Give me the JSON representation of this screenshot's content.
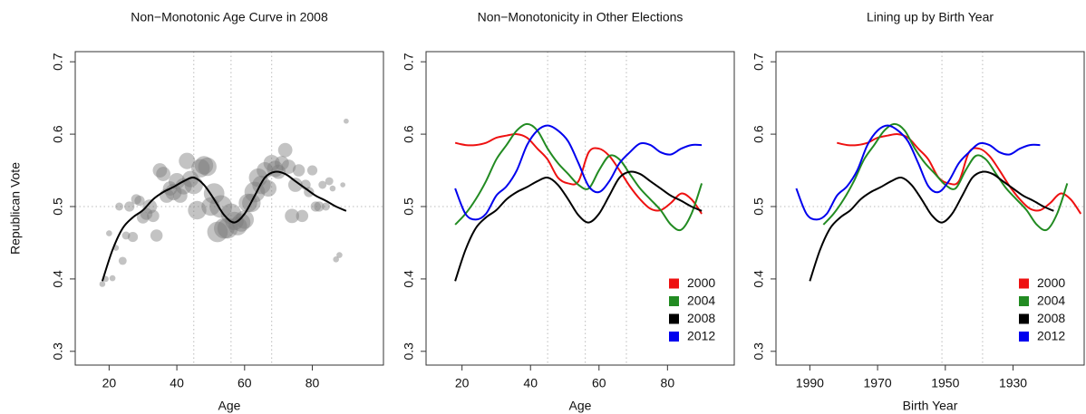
{
  "chart_data": [
    {
      "type": "scatter",
      "title": "Non−Monotonic Age Curve in 2008",
      "xlabel": "Age",
      "ylabel": "Republican Vote",
      "xlim": [
        10,
        101
      ],
      "ylim": [
        0.281,
        0.714
      ],
      "xticks": [
        20,
        40,
        60,
        80
      ],
      "yticks": [
        0.3,
        0.4,
        0.5,
        0.6,
        0.7
      ],
      "vlines": [
        45,
        56,
        68
      ],
      "hlines": [
        0.5
      ],
      "points": {
        "color": "#7a7a7a",
        "x": [
          18,
          19,
          20,
          21,
          22,
          23,
          24,
          25,
          26,
          27,
          28,
          29,
          30,
          31,
          32,
          33,
          34,
          35,
          36,
          37,
          38,
          39,
          40,
          41,
          42,
          43,
          44,
          45,
          46,
          47,
          48,
          49,
          50,
          51,
          52,
          53,
          54,
          55,
          56,
          57,
          58,
          59,
          60,
          61,
          62,
          63,
          64,
          65,
          66,
          67,
          68,
          69,
          70,
          71,
          72,
          73,
          74,
          75,
          76,
          77,
          78,
          79,
          80,
          81,
          82,
          83,
          84,
          85,
          86,
          87,
          88,
          89,
          90
        ],
        "values": [
          0.393,
          0.4,
          0.463,
          0.401,
          0.443,
          0.5,
          0.425,
          0.46,
          0.5,
          0.458,
          0.51,
          0.508,
          0.485,
          0.49,
          0.5,
          0.487,
          0.46,
          0.55,
          0.545,
          0.515,
          0.525,
          0.52,
          0.535,
          0.515,
          0.528,
          0.563,
          0.538,
          0.53,
          0.495,
          0.553,
          0.557,
          0.555,
          0.5,
          0.518,
          0.465,
          0.5,
          0.47,
          0.47,
          0.49,
          0.48,
          0.473,
          0.478,
          0.482,
          0.505,
          0.505,
          0.52,
          0.54,
          0.53,
          0.55,
          0.525,
          0.56,
          0.552,
          0.548,
          0.56,
          0.578,
          0.555,
          0.487,
          0.53,
          0.55,
          0.487,
          0.53,
          0.52,
          0.55,
          0.5,
          0.5,
          0.53,
          0.5,
          0.535,
          0.525,
          0.427,
          0.433,
          0.53,
          0.618
        ],
        "sizes": [
          1,
          1,
          1,
          1,
          1,
          1.5,
          1.5,
          1.5,
          2,
          2,
          2,
          2,
          2.5,
          2.5,
          3,
          2.5,
          2.5,
          3,
          3,
          3,
          3,
          3.5,
          3.5,
          3,
          3.5,
          3.5,
          3.5,
          4,
          4,
          4,
          4,
          4,
          4,
          4.5,
          4.5,
          5,
          4.5,
          4.5,
          4.5,
          4,
          4,
          4,
          4,
          4,
          4,
          4.5,
          4,
          4,
          3.5,
          3.5,
          3.5,
          3.5,
          3,
          3,
          3,
          3,
          3,
          3,
          2.5,
          2.5,
          2,
          2,
          2,
          2,
          2,
          1.5,
          1.5,
          1.5,
          1,
          1,
          1,
          0.8,
          0.8
        ]
      },
      "x": [
        18,
        21,
        24,
        27,
        30,
        33,
        36,
        39,
        42,
        45,
        48,
        51,
        54,
        57,
        60,
        63,
        66,
        69,
        72,
        75,
        78,
        81,
        84,
        87,
        90
      ],
      "series": [
        {
          "color": "#000000",
          "values": [
            0.397,
            0.44,
            0.47,
            0.485,
            0.495,
            0.51,
            0.52,
            0.527,
            0.535,
            0.54,
            0.53,
            0.51,
            0.488,
            0.478,
            0.49,
            0.515,
            0.54,
            0.548,
            0.545,
            0.535,
            0.525,
            0.515,
            0.508,
            0.5,
            0.494
          ]
        }
      ]
    },
    {
      "type": "line",
      "title": "Non−Monotonicity in Other Elections",
      "xlabel": "Age",
      "xlim": [
        9.5,
        99.5
      ],
      "ylim": [
        0.281,
        0.714
      ],
      "xticks": [
        20,
        40,
        60,
        80
      ],
      "yticks": [
        0.3,
        0.4,
        0.5,
        0.6,
        0.7
      ],
      "vlines": [
        45,
        56,
        68
      ],
      "hlines": [
        0.5
      ],
      "legend": "lower right",
      "x": [
        18,
        21,
        24,
        27,
        30,
        33,
        36,
        39,
        42,
        45,
        48,
        51,
        54,
        57,
        60,
        63,
        66,
        69,
        72,
        75,
        78,
        81,
        84,
        87,
        90
      ],
      "series": [
        {
          "name": "2000",
          "color": "#ee1111",
          "values": [
            0.588,
            0.585,
            0.585,
            0.588,
            0.595,
            0.598,
            0.6,
            0.595,
            0.58,
            0.565,
            0.54,
            0.532,
            0.535,
            0.575,
            0.58,
            0.57,
            0.55,
            0.528,
            0.51,
            0.497,
            0.495,
            0.505,
            0.518,
            0.51,
            0.49
          ]
        },
        {
          "name": "2004",
          "color": "#228b22",
          "values": [
            0.475,
            0.49,
            0.51,
            0.535,
            0.565,
            0.585,
            0.605,
            0.614,
            0.605,
            0.58,
            0.56,
            0.545,
            0.53,
            0.525,
            0.55,
            0.57,
            0.565,
            0.545,
            0.525,
            0.51,
            0.495,
            0.475,
            0.468,
            0.49,
            0.532
          ]
        },
        {
          "name": "2008",
          "color": "#000000",
          "values": [
            0.397,
            0.44,
            0.47,
            0.485,
            0.495,
            0.51,
            0.52,
            0.527,
            0.535,
            0.54,
            0.53,
            0.51,
            0.488,
            0.478,
            0.49,
            0.515,
            0.54,
            0.548,
            0.545,
            0.535,
            0.525,
            0.515,
            0.508,
            0.5,
            0.494
          ]
        },
        {
          "name": "2012",
          "color": "#0000ee",
          "values": [
            0.525,
            0.49,
            0.482,
            0.49,
            0.515,
            0.528,
            0.55,
            0.585,
            0.605,
            0.612,
            0.605,
            0.59,
            0.56,
            0.528,
            0.52,
            0.535,
            0.56,
            0.575,
            0.587,
            0.585,
            0.575,
            0.572,
            0.58,
            0.585,
            0.585
          ]
        }
      ]
    },
    {
      "type": "line",
      "title": "Lining up by Birth Year",
      "xlabel": "Birth Year",
      "xlim": [
        2000,
        1909
      ],
      "ylim": [
        0.281,
        0.714
      ],
      "xticks": [
        1990,
        1970,
        1950,
        1930
      ],
      "yticks": [
        0.3,
        0.4,
        0.5,
        0.6,
        0.7
      ],
      "vlines": [
        1951,
        1939
      ],
      "hlines": [
        0.5
      ],
      "legend": "lower right",
      "series": [
        {
          "name": "2000",
          "color": "#ee1111",
          "x": [
            1982,
            1979,
            1976,
            1973,
            1970,
            1967,
            1964,
            1961,
            1958,
            1955,
            1952,
            1949,
            1946,
            1943,
            1940,
            1937,
            1934,
            1931,
            1928,
            1925,
            1922,
            1919,
            1916,
            1913,
            1910
          ],
          "values": [
            0.588,
            0.585,
            0.585,
            0.588,
            0.595,
            0.598,
            0.6,
            0.595,
            0.58,
            0.565,
            0.54,
            0.532,
            0.535,
            0.575,
            0.58,
            0.57,
            0.55,
            0.528,
            0.51,
            0.497,
            0.495,
            0.505,
            0.518,
            0.51,
            0.49
          ]
        },
        {
          "name": "2004",
          "color": "#228b22",
          "x": [
            1986,
            1983,
            1980,
            1977,
            1974,
            1971,
            1968,
            1965,
            1962,
            1959,
            1956,
            1953,
            1950,
            1947,
            1944,
            1941,
            1938,
            1935,
            1932,
            1929,
            1926,
            1923,
            1920,
            1917,
            1914
          ],
          "values": [
            0.475,
            0.49,
            0.51,
            0.535,
            0.565,
            0.585,
            0.605,
            0.614,
            0.605,
            0.58,
            0.56,
            0.545,
            0.53,
            0.525,
            0.55,
            0.57,
            0.565,
            0.545,
            0.525,
            0.51,
            0.495,
            0.475,
            0.468,
            0.49,
            0.532
          ]
        },
        {
          "name": "2008",
          "color": "#000000",
          "x": [
            1990,
            1987,
            1984,
            1981,
            1978,
            1975,
            1972,
            1969,
            1966,
            1963,
            1960,
            1957,
            1954,
            1951,
            1948,
            1945,
            1942,
            1939,
            1936,
            1933,
            1930,
            1927,
            1924,
            1921,
            1918
          ],
          "values": [
            0.397,
            0.44,
            0.47,
            0.485,
            0.495,
            0.51,
            0.52,
            0.527,
            0.535,
            0.54,
            0.53,
            0.51,
            0.488,
            0.478,
            0.49,
            0.515,
            0.54,
            0.548,
            0.545,
            0.535,
            0.525,
            0.515,
            0.508,
            0.5,
            0.494
          ]
        },
        {
          "name": "2012",
          "color": "#0000ee",
          "x": [
            1994,
            1991,
            1988,
            1985,
            1982,
            1979,
            1976,
            1973,
            1970,
            1967,
            1964,
            1961,
            1958,
            1955,
            1952,
            1949,
            1946,
            1943,
            1940,
            1937,
            1934,
            1931,
            1928,
            1925,
            1922
          ],
          "values": [
            0.525,
            0.49,
            0.482,
            0.49,
            0.515,
            0.528,
            0.55,
            0.585,
            0.605,
            0.612,
            0.605,
            0.59,
            0.56,
            0.528,
            0.52,
            0.535,
            0.56,
            0.575,
            0.587,
            0.585,
            0.575,
            0.572,
            0.58,
            0.585,
            0.585
          ]
        }
      ]
    }
  ]
}
